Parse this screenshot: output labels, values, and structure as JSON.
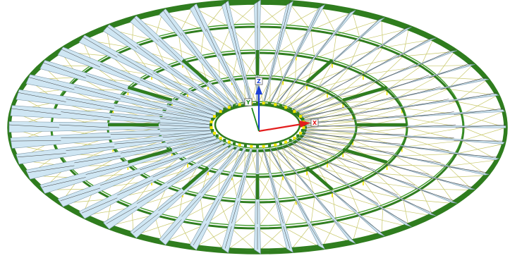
{
  "viewport": {
    "background": "#ffffff",
    "colors": {
      "main_ring": "#2f7d1e",
      "ring_light": "#3f9a2a",
      "radial_truss": "#cfe6f3",
      "radial_truss_edge": "#7f9aaa",
      "bracing": "#c8c86a",
      "hanger": "#f2e600",
      "dark_member": "#3b3b3b"
    },
    "structure": {
      "radial_members": 48,
      "ring_count": 5,
      "description_icons": [
        "ring-beam",
        "radial-truss",
        "cross-bracing",
        "vertical-hanger"
      ]
    }
  },
  "axis_triad": {
    "x_label": "X",
    "y_label": "Y",
    "z_label": "Z",
    "x_color": "#e31d1d",
    "y_color": "#1b8a1b",
    "z_color": "#1a3fd6"
  }
}
